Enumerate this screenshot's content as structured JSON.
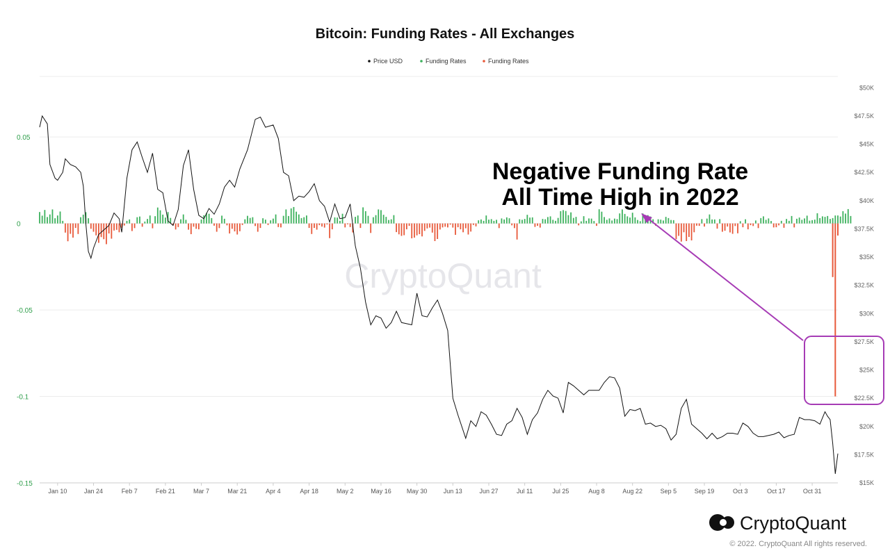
{
  "chart_data": {
    "type": "bar",
    "title": "Bitcoin: Funding Rates - All Exchanges",
    "legend": [
      {
        "label": "Price USD",
        "color": "#111111"
      },
      {
        "label": "Funding Rates",
        "color": "#3cb15c"
      },
      {
        "label": "Funding Rates",
        "color": "#e8593a"
      }
    ],
    "legend_position": "top-center",
    "grid": true,
    "x_axis": {
      "type": "date",
      "range": [
        "2022-01-03",
        "2022-11-10"
      ],
      "tick_labels": [
        "Jan 10",
        "Jan 24",
        "Feb 7",
        "Feb 21",
        "Mar 7",
        "Mar 21",
        "Apr 4",
        "Apr 18",
        "May 2",
        "May 16",
        "May 30",
        "Jun 13",
        "Jun 27",
        "Jul 11",
        "Jul 25",
        "Aug 8",
        "Aug 22",
        "Sep 5",
        "Sep 19",
        "Oct 3",
        "Oct 17",
        "Oct 31"
      ]
    },
    "y_left": {
      "range": [
        -0.15,
        0.085
      ],
      "tick_labels": [
        "0.05",
        "0",
        "-0.05",
        "-0.1",
        "-0.15"
      ]
    },
    "y_right": {
      "range": [
        15000,
        51000
      ],
      "tick_labels": [
        "$50K",
        "$47.5K",
        "$45K",
        "$42.5K",
        "$40K",
        "$37.5K",
        "$35K",
        "$32.5K",
        "$30K",
        "$27.5K",
        "$25K",
        "$22.5K",
        "$20K",
        "$17.5K",
        "$15K"
      ]
    },
    "series": [
      {
        "name": "Price USD",
        "type": "line",
        "axis": "right",
        "points": [
          [
            "2022-01-03",
            46500
          ],
          [
            "2022-01-04",
            47500
          ],
          [
            "2022-01-06",
            46800
          ],
          [
            "2022-01-07",
            43200
          ],
          [
            "2022-01-09",
            42000
          ],
          [
            "2022-01-10",
            41800
          ],
          [
            "2022-01-12",
            42500
          ],
          [
            "2022-01-13",
            43700
          ],
          [
            "2022-01-15",
            43200
          ],
          [
            "2022-01-17",
            43000
          ],
          [
            "2022-01-19",
            42500
          ],
          [
            "2022-01-20",
            41300
          ],
          [
            "2022-01-21",
            38000
          ],
          [
            "2022-01-22",
            35500
          ],
          [
            "2022-01-23",
            34900
          ],
          [
            "2022-01-24",
            35800
          ],
          [
            "2022-01-26",
            37000
          ],
          [
            "2022-01-28",
            37400
          ],
          [
            "2022-01-30",
            37800
          ],
          [
            "2022-02-01",
            38900
          ],
          [
            "2022-02-03",
            38400
          ],
          [
            "2022-02-04",
            37200
          ],
          [
            "2022-02-06",
            42000
          ],
          [
            "2022-02-08",
            44500
          ],
          [
            "2022-02-10",
            45200
          ],
          [
            "2022-02-12",
            43800
          ],
          [
            "2022-02-14",
            42500
          ],
          [
            "2022-02-16",
            44200
          ],
          [
            "2022-02-18",
            41000
          ],
          [
            "2022-02-20",
            40700
          ],
          [
            "2022-02-22",
            38200
          ],
          [
            "2022-02-24",
            37800
          ],
          [
            "2022-02-26",
            39200
          ],
          [
            "2022-02-28",
            43100
          ],
          [
            "2022-03-02",
            44500
          ],
          [
            "2022-03-04",
            41000
          ],
          [
            "2022-03-06",
            38700
          ],
          [
            "2022-03-08",
            38400
          ],
          [
            "2022-03-10",
            39300
          ],
          [
            "2022-03-12",
            38800
          ],
          [
            "2022-03-14",
            39700
          ],
          [
            "2022-03-16",
            41200
          ],
          [
            "2022-03-18",
            41800
          ],
          [
            "2022-03-20",
            41200
          ],
          [
            "2022-03-22",
            42800
          ],
          [
            "2022-03-25",
            44500
          ],
          [
            "2022-03-28",
            47200
          ],
          [
            "2022-03-30",
            47400
          ],
          [
            "2022-04-01",
            46500
          ],
          [
            "2022-04-04",
            46700
          ],
          [
            "2022-04-06",
            45500
          ],
          [
            "2022-04-08",
            42500
          ],
          [
            "2022-04-10",
            42200
          ],
          [
            "2022-04-12",
            40000
          ],
          [
            "2022-04-14",
            40400
          ],
          [
            "2022-04-16",
            40300
          ],
          [
            "2022-04-18",
            40800
          ],
          [
            "2022-04-20",
            41500
          ],
          [
            "2022-04-22",
            40000
          ],
          [
            "2022-04-24",
            39500
          ],
          [
            "2022-04-26",
            38100
          ],
          [
            "2022-04-28",
            39700
          ],
          [
            "2022-04-30",
            38400
          ],
          [
            "2022-05-02",
            38500
          ],
          [
            "2022-05-04",
            39700
          ],
          [
            "2022-05-06",
            36000
          ],
          [
            "2022-05-08",
            34000
          ],
          [
            "2022-05-10",
            31000
          ],
          [
            "2022-05-12",
            29000
          ],
          [
            "2022-05-14",
            29800
          ],
          [
            "2022-05-16",
            29600
          ],
          [
            "2022-05-18",
            28700
          ],
          [
            "2022-05-20",
            29200
          ],
          [
            "2022-05-22",
            30200
          ],
          [
            "2022-05-24",
            29200
          ],
          [
            "2022-05-26",
            29100
          ],
          [
            "2022-05-28",
            29000
          ],
          [
            "2022-05-30",
            31800
          ],
          [
            "2022-06-01",
            29800
          ],
          [
            "2022-06-03",
            29700
          ],
          [
            "2022-06-05",
            30500
          ],
          [
            "2022-06-07",
            31200
          ],
          [
            "2022-06-09",
            30000
          ],
          [
            "2022-06-11",
            28500
          ],
          [
            "2022-06-13",
            22500
          ],
          [
            "2022-06-15",
            21000
          ],
          [
            "2022-06-18",
            18950
          ],
          [
            "2022-06-20",
            20500
          ],
          [
            "2022-06-22",
            20000
          ],
          [
            "2022-06-24",
            21300
          ],
          [
            "2022-06-26",
            21000
          ],
          [
            "2022-06-28",
            20200
          ],
          [
            "2022-06-30",
            19300
          ],
          [
            "2022-07-02",
            19200
          ],
          [
            "2022-07-04",
            20200
          ],
          [
            "2022-07-06",
            20500
          ],
          [
            "2022-07-08",
            21600
          ],
          [
            "2022-07-10",
            20800
          ],
          [
            "2022-07-12",
            19300
          ],
          [
            "2022-07-14",
            20600
          ],
          [
            "2022-07-16",
            21200
          ],
          [
            "2022-07-18",
            22400
          ],
          [
            "2022-07-20",
            23200
          ],
          [
            "2022-07-22",
            22700
          ],
          [
            "2022-07-24",
            22500
          ],
          [
            "2022-07-26",
            21200
          ],
          [
            "2022-07-28",
            23900
          ],
          [
            "2022-07-30",
            23600
          ],
          [
            "2022-08-01",
            23200
          ],
          [
            "2022-08-03",
            22800
          ],
          [
            "2022-08-05",
            23200
          ],
          [
            "2022-08-07",
            23200
          ],
          [
            "2022-08-09",
            23200
          ],
          [
            "2022-08-11",
            23900
          ],
          [
            "2022-08-13",
            24400
          ],
          [
            "2022-08-15",
            24300
          ],
          [
            "2022-08-17",
            23400
          ],
          [
            "2022-08-19",
            20900
          ],
          [
            "2022-08-21",
            21500
          ],
          [
            "2022-08-23",
            21400
          ],
          [
            "2022-08-25",
            21600
          ],
          [
            "2022-08-27",
            20200
          ],
          [
            "2022-08-29",
            20300
          ],
          [
            "2022-08-31",
            20000
          ],
          [
            "2022-09-02",
            20100
          ],
          [
            "2022-09-04",
            19800
          ],
          [
            "2022-09-06",
            18800
          ],
          [
            "2022-09-08",
            19300
          ],
          [
            "2022-09-10",
            21600
          ],
          [
            "2022-09-12",
            22400
          ],
          [
            "2022-09-14",
            20200
          ],
          [
            "2022-09-16",
            19800
          ],
          [
            "2022-09-18",
            19400
          ],
          [
            "2022-09-20",
            18900
          ],
          [
            "2022-09-22",
            19400
          ],
          [
            "2022-09-24",
            18900
          ],
          [
            "2022-09-26",
            19100
          ],
          [
            "2022-09-28",
            19400
          ],
          [
            "2022-09-30",
            19400
          ],
          [
            "2022-10-02",
            19300
          ],
          [
            "2022-10-04",
            20300
          ],
          [
            "2022-10-06",
            20000
          ],
          [
            "2022-10-08",
            19400
          ],
          [
            "2022-10-10",
            19100
          ],
          [
            "2022-10-12",
            19100
          ],
          [
            "2022-10-14",
            19200
          ],
          [
            "2022-10-16",
            19300
          ],
          [
            "2022-10-18",
            19500
          ],
          [
            "2022-10-20",
            19000
          ],
          [
            "2022-10-22",
            19200
          ],
          [
            "2022-10-24",
            19300
          ],
          [
            "2022-10-26",
            20800
          ],
          [
            "2022-10-28",
            20600
          ],
          [
            "2022-10-30",
            20600
          ],
          [
            "2022-11-01",
            20500
          ],
          [
            "2022-11-03",
            20200
          ],
          [
            "2022-11-05",
            21300
          ],
          [
            "2022-11-06",
            20900
          ],
          [
            "2022-11-07",
            20600
          ],
          [
            "2022-11-08",
            18500
          ],
          [
            "2022-11-09",
            15800
          ],
          [
            "2022-11-10",
            17600
          ]
        ]
      },
      {
        "name": "Funding Rates",
        "type": "bar",
        "axis": "left",
        "values": [
          0.0066,
          0.0045,
          0.0078,
          0.0037,
          0.0052,
          0.0081,
          0.003,
          0.0046,
          0.0069,
          0.0015,
          -0.0053,
          -0.0103,
          -0.006,
          -0.0082,
          -0.0026,
          -0.0061,
          0.0036,
          0.0051,
          0.0065,
          0.003,
          -0.0031,
          -0.0048,
          -0.0069,
          -0.0112,
          -0.0079,
          -0.0091,
          -0.012,
          -0.0058,
          -0.0088,
          -0.0041,
          -0.0037,
          -0.0051,
          -0.0025,
          -0.0012,
          0.0015,
          0.0023,
          -0.0044,
          -0.0027,
          0.0036,
          0.004,
          -0.0019,
          0.0011,
          0.0026,
          0.0046,
          -0.0028,
          0.0042,
          0.0092,
          0.0076,
          0.0051,
          0.0034,
          0.0066,
          0.0032,
          -0.0011,
          -0.0035,
          -0.0021,
          0.0024,
          0.0052,
          0.0021,
          -0.0036,
          -0.0062,
          -0.0019,
          -0.0031,
          -0.0034,
          0.0023,
          0.0047,
          0.006,
          0.0056,
          0.0031,
          -0.0013,
          -0.0048,
          -0.0027,
          0.0045,
          0.0027,
          -0.0011,
          -0.0058,
          -0.0031,
          -0.0046,
          -0.0064,
          -0.0045,
          -0.0009,
          0.0024,
          0.0044,
          0.0032,
          0.0036,
          -0.0015,
          -0.0048,
          -0.0026,
          0.003,
          0.0022,
          -0.0009,
          0.0018,
          0.0028,
          0.0052,
          -0.0021,
          -0.0023,
          0.0044,
          0.0081,
          0.0043,
          0.0087,
          0.0095,
          0.0068,
          0.0052,
          0.0031,
          0.0036,
          0.0046,
          -0.0026,
          -0.0061,
          -0.0026,
          -0.0036,
          -0.001,
          -0.0018,
          -0.0024,
          -0.0006,
          -0.0085,
          -0.0034,
          0.0035,
          0.0034,
          0.0015,
          0.0056,
          -0.0023,
          -0.0005,
          -0.0021,
          -0.0052,
          0.0038,
          0.0046,
          -0.0026,
          0.0093,
          0.0071,
          0.0044,
          -0.0055,
          0.0036,
          0.0048,
          0.0081,
          0.0077,
          0.005,
          0.0038,
          0.002,
          0.0024,
          0.0048,
          -0.005,
          -0.0063,
          -0.0072,
          -0.0068,
          -0.0034,
          -0.0014,
          -0.0086,
          -0.0082,
          -0.0069,
          -0.0062,
          -0.0075,
          -0.0043,
          -0.0029,
          -0.0024,
          -0.0053,
          -0.0102,
          -0.009,
          -0.0035,
          -0.0023,
          -0.0019,
          -0.0023,
          -0.0007,
          -0.0024,
          -0.0066,
          -0.0022,
          -0.0034,
          -0.0051,
          -0.0028,
          -0.0064,
          -0.0047,
          -0.0009,
          -0.0017,
          0.0018,
          0.0023,
          0.0015,
          0.0046,
          0.0022,
          0.0025,
          0.0015,
          0.0021,
          -0.0027,
          0.0029,
          0.0023,
          0.0035,
          0.003,
          -0.0011,
          -0.0027,
          -0.0093,
          0.0024,
          0.0021,
          0.0026,
          0.005,
          0.0034,
          0.0035,
          -0.002,
          -0.0014,
          -0.0024,
          0.0026,
          0.0024,
          0.0037,
          0.0041,
          0.0021,
          0.0015,
          0.0032,
          0.0071,
          0.0077,
          0.0072,
          0.0048,
          0.0064,
          0.0032,
          0.0038,
          -0.0011,
          0.0012,
          0.0042,
          0.0015,
          0.0029,
          0.0028,
          0.0014,
          -0.0014,
          0.0082,
          0.0068,
          0.0037,
          0.0021,
          0.0029,
          0.0017,
          0.0028,
          0.0025,
          0.0058,
          0.0081,
          0.0055,
          0.0041,
          0.0034,
          0.0062,
          0.0035,
          0.002,
          0.0013,
          0.0058,
          0.0031,
          0.0048,
          0.004,
          0.0024,
          -0.0013,
          0.0024,
          0.0022,
          0.0017,
          0.0038,
          0.0031,
          0.002,
          0.0019,
          -0.0091,
          -0.0072,
          -0.0105,
          -0.0051,
          -0.0102,
          -0.0078,
          -0.0098,
          -0.0051,
          -0.0013,
          -0.0014,
          0.0025,
          -0.0018,
          0.0028,
          0.0052,
          0.0023,
          0.0023,
          -0.003,
          0.0025,
          -0.0048,
          -0.0042,
          -0.0018,
          -0.0052,
          -0.006,
          -0.0015,
          -0.0057,
          0.0013,
          -0.0022,
          0.0024,
          -0.0034,
          -0.001,
          -0.0015,
          0.0017,
          -0.0027,
          0.0031,
          0.0041,
          0.0021,
          0.0029,
          0.0014,
          -0.0023,
          -0.0022,
          -0.0011,
          0.0015,
          -0.0025,
          0.0026,
          0.0015,
          0.0043,
          -0.0023,
          0.0027,
          0.0034,
          0.0021,
          0.0029,
          0.0045,
          0.0016,
          0.0019,
          0.0022,
          0.0059,
          0.0031,
          0.0041,
          0.0038,
          0.0043,
          0.0026,
          0.0031,
          0.0046,
          0.0046,
          0.004,
          0.0071,
          0.0057,
          0.0083,
          0.0043
        ]
      },
      {
        "name": "Funding Rates",
        "type": "bar",
        "axis": "left",
        "annotation_spike": [
          [
            "2022-11-08",
            -0.031
          ],
          [
            "2022-11-09",
            -0.1
          ],
          [
            "2022-11-10",
            -0.007
          ]
        ]
      }
    ],
    "annotations": [
      {
        "text": "Negative Funding Rate",
        "line": 1
      },
      {
        "text": "All Time High in 2022",
        "line": 2
      }
    ]
  },
  "brand": {
    "name": "CryptoQuant",
    "watermark": "CryptoQuant",
    "copyright": "© 2022. CryptoQuant All rights reserved."
  },
  "colors": {
    "positive": "#3cb15c",
    "negative": "#e8593a",
    "price": "#111111",
    "highlight": "#a63bb5",
    "left_axis": "#2e9e4a"
  }
}
